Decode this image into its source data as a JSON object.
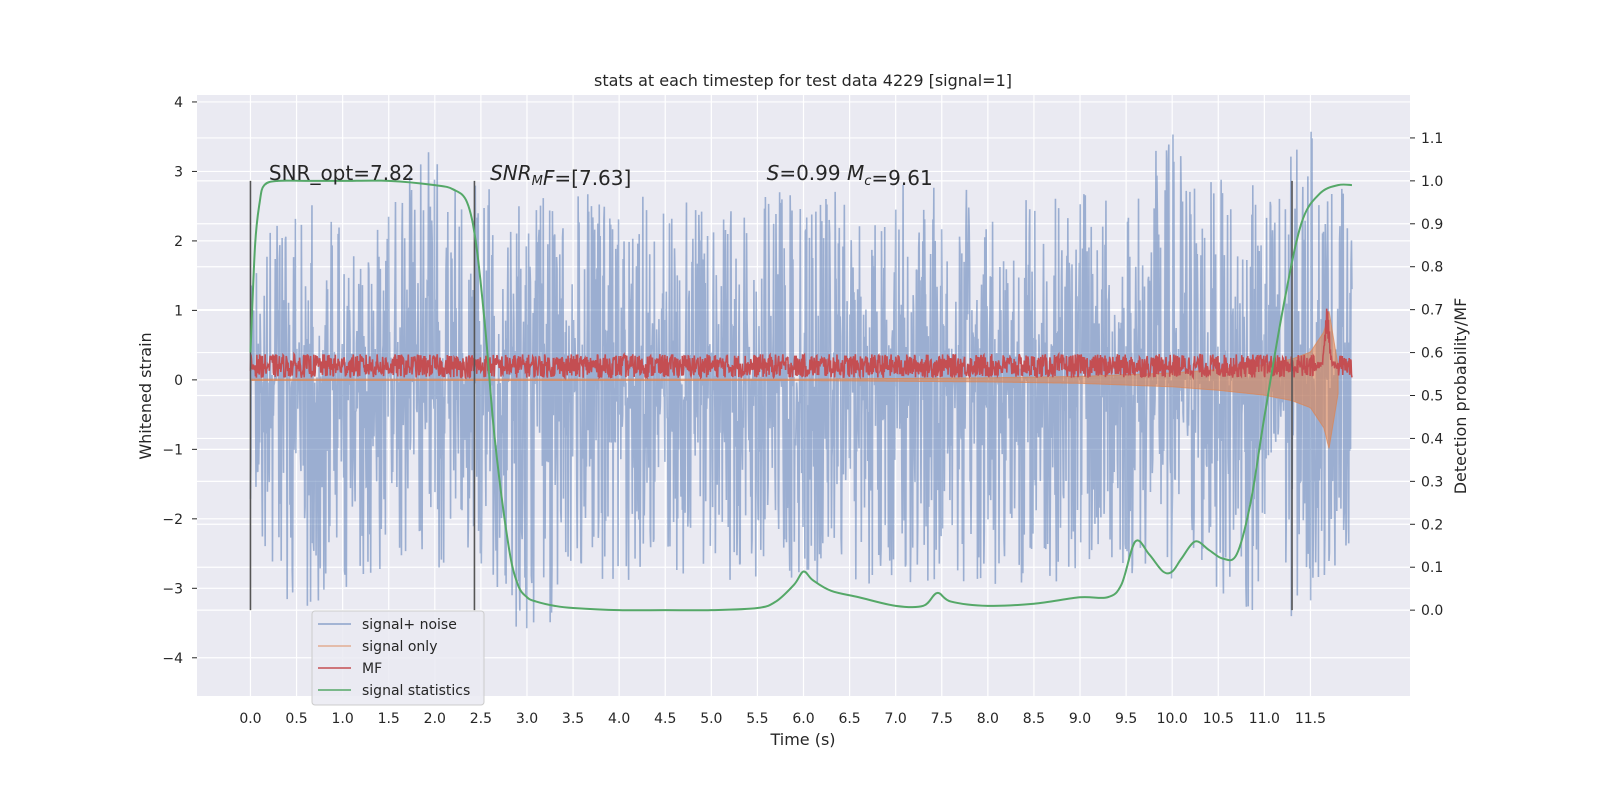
{
  "chart_data": {
    "type": "line",
    "title": "stats at each timestep for test data 4229 [signal=1]",
    "xlabel": "Time (s)",
    "ylabel": "Whitened strain",
    "ylabel_right": "Detection probability/MF",
    "xlim": [
      -0.58,
      12.58
    ],
    "ylim": [
      -4.55,
      4.1
    ],
    "ylim_right": [
      -0.2,
      1.2
    ],
    "grid": true,
    "legend_position": "lower-left",
    "xticks": [
      0.0,
      0.5,
      1.0,
      1.5,
      2.0,
      2.5,
      3.0,
      3.5,
      4.0,
      4.5,
      5.0,
      5.5,
      6.0,
      6.5,
      7.0,
      7.5,
      8.0,
      8.5,
      9.0,
      9.5,
      10.0,
      10.5,
      11.0,
      11.5
    ],
    "xtick_labels": [
      "0.0",
      "0.5",
      "1.0",
      "1.5",
      "2.0",
      "2.5",
      "3.0",
      "3.5",
      "4.0",
      "4.5",
      "5.0",
      "5.5",
      "6.0",
      "6.5",
      "7.0",
      "7.5",
      "8.0",
      "8.5",
      "9.0",
      "9.5",
      "10.0",
      "10.5",
      "11.0",
      "11.5"
    ],
    "yticks": [
      -4,
      -3,
      -2,
      -1,
      0,
      1,
      2,
      3,
      4
    ],
    "ytick_labels": [
      "−4",
      "−3",
      "−2",
      "−1",
      "0",
      "1",
      "2",
      "3",
      "4"
    ],
    "yticks_right": [
      0.0,
      0.1,
      0.2,
      0.3,
      0.4,
      0.5,
      0.6,
      0.7,
      0.8,
      0.9,
      1.0,
      1.1
    ],
    "ytick_labels_right": [
      "0.0",
      "0.1",
      "0.2",
      "0.3",
      "0.4",
      "0.5",
      "0.6",
      "0.7",
      "0.8",
      "0.9",
      "1.0",
      "1.1"
    ],
    "series": [
      {
        "name": "signal+ noise",
        "axis": "left",
        "color": "#4c72b0",
        "opacity": 0.5,
        "x_range": [
          0.0,
          11.95
        ],
        "envelope": {
          "x": [
            0.0,
            0.5,
            1.0,
            1.5,
            2.0,
            2.5,
            3.0,
            3.5,
            4.0,
            4.5,
            5.0,
            5.5,
            6.0,
            6.5,
            7.0,
            7.5,
            8.0,
            8.5,
            9.0,
            9.5,
            10.0,
            10.5,
            11.0,
            11.5,
            11.95
          ],
          "upper": [
            2.1,
            2.6,
            2.7,
            2.6,
            3.4,
            2.8,
            2.7,
            2.7,
            2.7,
            2.6,
            2.6,
            2.7,
            2.8,
            2.7,
            2.9,
            2.8,
            2.7,
            2.8,
            2.7,
            2.8,
            3.7,
            2.9,
            2.8,
            3.7,
            2.6
          ],
          "lower": [
            -2.8,
            -3.4,
            -3.0,
            -2.9,
            -2.7,
            -2.9,
            -3.8,
            -3.2,
            -2.9,
            -2.8,
            -2.8,
            -3.0,
            -3.0,
            -2.9,
            -3.2,
            -3.0,
            -3.0,
            -2.9,
            -2.9,
            -2.9,
            -3.0,
            -3.0,
            -3.8,
            -3.3,
            -2.3
          ]
        }
      },
      {
        "name": "signal only",
        "axis": "left",
        "color": "#dd8452",
        "opacity": 0.6,
        "envelope": {
          "x": [
            0.0,
            6.0,
            8.0,
            9.0,
            10.0,
            10.5,
            11.0,
            11.3,
            11.5,
            11.65,
            11.7,
            11.8
          ],
          "amplitude": [
            0.01,
            0.01,
            0.03,
            0.05,
            0.1,
            0.15,
            0.22,
            0.3,
            0.4,
            0.7,
            1.0,
            0.2
          ]
        }
      },
      {
        "name": "MF",
        "axis": "left",
        "color": "#c44e52",
        "x_range": [
          0.0,
          11.95
        ],
        "baseline": 0.2,
        "noise_amplitude": 0.17,
        "max_spike": 1.0
      },
      {
        "name": "signal statistics",
        "axis": "right",
        "color": "#55a868",
        "x": [
          0.0,
          0.05,
          0.1,
          0.15,
          0.3,
          0.6,
          1.0,
          1.5,
          2.0,
          2.2,
          2.35,
          2.45,
          2.55,
          2.65,
          2.8,
          2.9,
          3.0,
          3.1,
          3.3,
          3.5,
          4.0,
          4.5,
          5.0,
          5.5,
          5.7,
          5.9,
          6.0,
          6.1,
          6.3,
          6.6,
          7.0,
          7.3,
          7.45,
          7.6,
          8.0,
          8.5,
          9.0,
          9.3,
          9.45,
          9.6,
          9.75,
          9.9,
          10.0,
          10.1,
          10.25,
          10.4,
          10.55,
          10.7,
          10.85,
          11.0,
          11.2,
          11.4,
          11.6,
          11.8,
          11.95
        ],
        "y": [
          0.6,
          0.85,
          0.95,
          0.99,
          1.0,
          1.0,
          1.0,
          1.0,
          0.99,
          0.98,
          0.95,
          0.85,
          0.65,
          0.4,
          0.15,
          0.06,
          0.03,
          0.02,
          0.01,
          0.005,
          0.0,
          0.0,
          0.0,
          0.005,
          0.02,
          0.06,
          0.09,
          0.07,
          0.045,
          0.03,
          0.01,
          0.01,
          0.04,
          0.02,
          0.01,
          0.015,
          0.03,
          0.03,
          0.06,
          0.16,
          0.13,
          0.09,
          0.09,
          0.12,
          0.16,
          0.14,
          0.12,
          0.13,
          0.25,
          0.45,
          0.7,
          0.9,
          0.97,
          0.99,
          0.99
        ]
      }
    ],
    "vertical_markers": [
      {
        "x": 0.0,
        "ymin_right": 0.0,
        "ymax_right": 1.0
      },
      {
        "x": 2.43,
        "ymin_right": 0.0,
        "ymax_right": 1.0
      },
      {
        "x": 11.3,
        "ymin_right": 0.0,
        "ymax_right": 1.0
      }
    ],
    "annotations": [
      {
        "parts": [
          {
            "t": "SNR_opt=7.82"
          }
        ],
        "x": 0.2,
        "y": 2.88
      },
      {
        "parts": [
          {
            "t": "SNR",
            "i": true
          },
          {
            "t": "M",
            "i": true,
            "sub": true
          },
          {
            "t": "F",
            "i": true
          },
          {
            "t": "=[7.63]"
          }
        ],
        "x": 2.6,
        "y": 2.88
      },
      {
        "parts": [
          {
            "t": "S",
            "i": true
          },
          {
            "t": "=0.99   "
          },
          {
            "t": "M",
            "i": true
          },
          {
            "t": "c",
            "i": true,
            "sub": true
          },
          {
            "t": "=9.61"
          }
        ],
        "x": 5.6,
        "y": 2.88
      }
    ]
  }
}
